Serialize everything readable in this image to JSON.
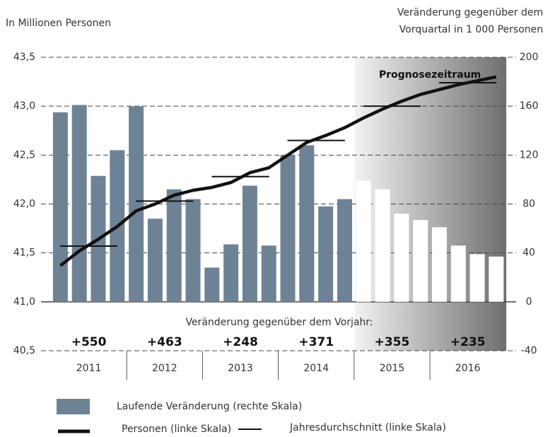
{
  "chart_data": {
    "type": "bar+line",
    "left_axis_label": "In Millionen Personen",
    "right_axis_label_lines": [
      "Veränderung gegenüber dem",
      "Vorquartal in 1 000 Personen"
    ],
    "years": [
      "2011",
      "2012",
      "2013",
      "2014",
      "2015",
      "2016"
    ],
    "annotation": "Prognosezeitraum",
    "annual_change_title": "Veränderung gegenüber dem Vorjahr:",
    "annual_change_labels": [
      "+550",
      "+463",
      "+248",
      "+371",
      "+355",
      "+235"
    ],
    "ylim": [
      40.5,
      43.5
    ],
    "yticks": [
      {
        "value": 40.5,
        "label": "40,5"
      },
      {
        "value": 41.0,
        "label": "41,0"
      },
      {
        "value": 41.5,
        "label": "41,5"
      },
      {
        "value": 42.0,
        "label": "42,0"
      },
      {
        "value": 42.5,
        "label": "42,5"
      },
      {
        "value": 43.0,
        "label": "43,0"
      },
      {
        "value": 43.5,
        "label": "43,5"
      }
    ],
    "y2lim": [
      -40,
      200
    ],
    "y2ticks": [
      -40,
      0,
      40,
      80,
      120,
      160,
      200
    ],
    "series": [
      {
        "name": "Laufende Veränderung (rechte Skala)",
        "axis": "y2",
        "kind": "bar",
        "colors": [
          "#6e8295",
          "#ffffff"
        ],
        "values": [
          155,
          161,
          103,
          124,
          160,
          68,
          92,
          84,
          28,
          47,
          95,
          46,
          120,
          128,
          78,
          84,
          99,
          92,
          72,
          67,
          61,
          46,
          39,
          37
        ]
      },
      {
        "name": "Personen (linke Skala)",
        "kind": "line",
        "color": "#111111",
        "values": [
          41.37,
          41.52,
          41.64,
          41.77,
          41.93,
          42.0,
          42.09,
          42.14,
          42.17,
          42.22,
          42.32,
          42.37,
          42.5,
          42.63,
          42.7,
          42.78,
          42.88,
          42.97,
          43.05,
          43.12,
          43.17,
          43.22,
          43.26,
          43.3
        ]
      },
      {
        "name": "Jahresdurchschnitt (linke Skala)",
        "kind": "annual",
        "color": "#111111",
        "values": [
          41.57,
          42.03,
          42.28,
          42.65,
          43.0,
          43.24
        ]
      }
    ]
  }
}
